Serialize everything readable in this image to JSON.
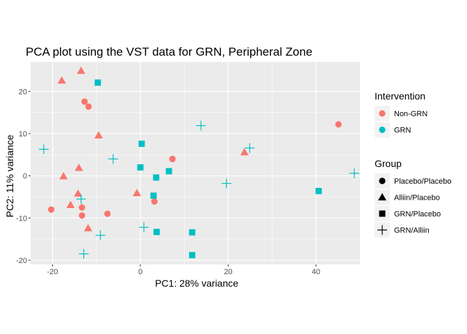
{
  "chart_data": {
    "type": "scatter",
    "title": "PCA plot using the VST data for GRN, Peripheral Zone",
    "xlabel": "PC1: 28% variance",
    "ylabel": "PC2: 11% variance",
    "xlim": [
      -25,
      50
    ],
    "ylim": [
      -21,
      27
    ],
    "x_ticks": [
      -20,
      0,
      20,
      40
    ],
    "y_ticks": [
      -20,
      -10,
      0,
      10,
      20
    ],
    "grid": true,
    "colors": {
      "Non-GRN": "#F8766D",
      "GRN": "#00BFC4",
      "panel_bg": "#EBEBEB",
      "grid": "#FFFFFF",
      "legend_key_bg": "#F2F2F2"
    },
    "legends": [
      {
        "title": "Intervention",
        "position": "right",
        "entries": [
          {
            "label": "Non-GRN",
            "color": "#F8766D",
            "shape": "circle"
          },
          {
            "label": "GRN",
            "color": "#00BFC4",
            "shape": "circle"
          }
        ]
      },
      {
        "title": "Group",
        "position": "right",
        "entries": [
          {
            "label": "Placebo/Placebo",
            "color": "#000000",
            "shape": "circle"
          },
          {
            "label": "Alliin/Placebo",
            "color": "#000000",
            "shape": "triangle"
          },
          {
            "label": "GRN/Placebo",
            "color": "#000000",
            "shape": "square"
          },
          {
            "label": "GRN/Alliin",
            "color": "#000000",
            "shape": "plus"
          }
        ]
      }
    ],
    "points": [
      {
        "x": -20.3,
        "y": -8.0,
        "intervention": "Non-GRN",
        "group": "Placebo/Placebo"
      },
      {
        "x": -13.3,
        "y": -7.5,
        "intervention": "Non-GRN",
        "group": "Placebo/Placebo"
      },
      {
        "x": -13.3,
        "y": -9.4,
        "intervention": "Non-GRN",
        "group": "Placebo/Placebo"
      },
      {
        "x": -7.5,
        "y": -9.0,
        "intervention": "Non-GRN",
        "group": "Placebo/Placebo"
      },
      {
        "x": -12.7,
        "y": 17.6,
        "intervention": "Non-GRN",
        "group": "Placebo/Placebo"
      },
      {
        "x": -11.8,
        "y": 16.4,
        "intervention": "Non-GRN",
        "group": "Placebo/Placebo"
      },
      {
        "x": 3.2,
        "y": -6.1,
        "intervention": "Non-GRN",
        "group": "Placebo/Placebo"
      },
      {
        "x": 7.3,
        "y": 4.0,
        "intervention": "Non-GRN",
        "group": "Placebo/Placebo"
      },
      {
        "x": 45.1,
        "y": 12.2,
        "intervention": "Non-GRN",
        "group": "Placebo/Placebo"
      },
      {
        "x": -13.5,
        "y": 24.9,
        "intervention": "Non-GRN",
        "group": "Alliin/Placebo"
      },
      {
        "x": -17.9,
        "y": 22.6,
        "intervention": "Non-GRN",
        "group": "Alliin/Placebo"
      },
      {
        "x": -9.5,
        "y": 9.6,
        "intervention": "Non-GRN",
        "group": "Alliin/Placebo"
      },
      {
        "x": -14.0,
        "y": 1.9,
        "intervention": "Non-GRN",
        "group": "Alliin/Placebo"
      },
      {
        "x": -17.5,
        "y": -0.1,
        "intervention": "Non-GRN",
        "group": "Alliin/Placebo"
      },
      {
        "x": -14.2,
        "y": -4.2,
        "intervention": "Non-GRN",
        "group": "Alliin/Placebo"
      },
      {
        "x": -15.9,
        "y": -6.9,
        "intervention": "Non-GRN",
        "group": "Alliin/Placebo"
      },
      {
        "x": -11.9,
        "y": -12.4,
        "intervention": "Non-GRN",
        "group": "Alliin/Placebo"
      },
      {
        "x": -0.8,
        "y": -4.1,
        "intervention": "Non-GRN",
        "group": "Alliin/Placebo"
      },
      {
        "x": 23.7,
        "y": 5.6,
        "intervention": "Non-GRN",
        "group": "Alliin/Placebo"
      },
      {
        "x": -9.7,
        "y": 22.1,
        "intervention": "GRN",
        "group": "GRN/Placebo"
      },
      {
        "x": 0.3,
        "y": 7.6,
        "intervention": "GRN",
        "group": "GRN/Placebo"
      },
      {
        "x": 0.0,
        "y": 2.0,
        "intervention": "GRN",
        "group": "GRN/Placebo"
      },
      {
        "x": 6.5,
        "y": 1.1,
        "intervention": "GRN",
        "group": "GRN/Placebo"
      },
      {
        "x": 3.6,
        "y": -0.4,
        "intervention": "GRN",
        "group": "GRN/Placebo"
      },
      {
        "x": 3.0,
        "y": -4.7,
        "intervention": "GRN",
        "group": "GRN/Placebo"
      },
      {
        "x": 3.7,
        "y": -13.3,
        "intervention": "GRN",
        "group": "GRN/Placebo"
      },
      {
        "x": 11.8,
        "y": -13.4,
        "intervention": "GRN",
        "group": "GRN/Placebo"
      },
      {
        "x": 11.8,
        "y": -18.8,
        "intervention": "GRN",
        "group": "GRN/Placebo"
      },
      {
        "x": 40.6,
        "y": -3.6,
        "intervention": "GRN",
        "group": "GRN/Placebo"
      },
      {
        "x": -22.0,
        "y": 6.3,
        "intervention": "GRN",
        "group": "GRN/Alliin"
      },
      {
        "x": -6.2,
        "y": 4.0,
        "intervention": "GRN",
        "group": "GRN/Alliin"
      },
      {
        "x": -13.5,
        "y": -5.5,
        "intervention": "GRN",
        "group": "GRN/Alliin"
      },
      {
        "x": -9.1,
        "y": -14.1,
        "intervention": "GRN",
        "group": "GRN/Alliin"
      },
      {
        "x": -12.9,
        "y": -18.5,
        "intervention": "GRN",
        "group": "GRN/Alliin"
      },
      {
        "x": 0.8,
        "y": -12.2,
        "intervention": "GRN",
        "group": "GRN/Alliin"
      },
      {
        "x": 13.8,
        "y": 11.9,
        "intervention": "GRN",
        "group": "GRN/Alliin"
      },
      {
        "x": 24.9,
        "y": 6.6,
        "intervention": "GRN",
        "group": "GRN/Alliin"
      },
      {
        "x": 19.6,
        "y": -1.8,
        "intervention": "GRN",
        "group": "GRN/Alliin"
      },
      {
        "x": 48.7,
        "y": 0.6,
        "intervention": "GRN",
        "group": "GRN/Alliin"
      }
    ]
  }
}
